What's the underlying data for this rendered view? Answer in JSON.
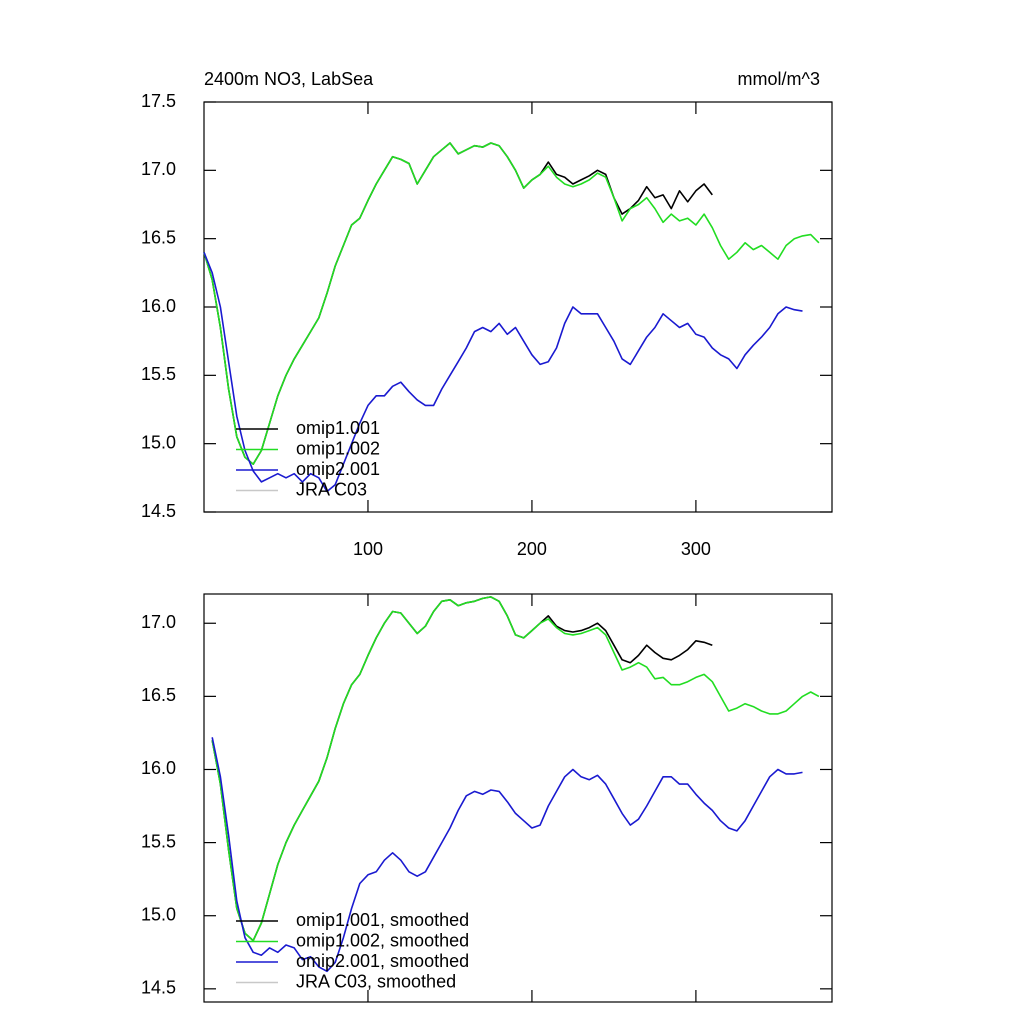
{
  "chart_data": [
    {
      "type": "line",
      "title": "2400m NO3, LabSea",
      "units": "mmol/m^3",
      "x": [
        0,
        5,
        10,
        15,
        20,
        25,
        30,
        35,
        40,
        45,
        50,
        55,
        60,
        65,
        70,
        75,
        80,
        85,
        90,
        95,
        100,
        105,
        110,
        115,
        120,
        125,
        130,
        135,
        140,
        145,
        150,
        155,
        160,
        165,
        170,
        175,
        180,
        185,
        190,
        195,
        200,
        205,
        210,
        215,
        220,
        225,
        230,
        235,
        240,
        245,
        250,
        255,
        260,
        265,
        270,
        275,
        280,
        285,
        290,
        295,
        300,
        305,
        310,
        315,
        320,
        325,
        330,
        335,
        340,
        345,
        350,
        355,
        360,
        365,
        370,
        375
      ],
      "series": [
        {
          "name": "omip1.001",
          "color": "#000000",
          "values": [
            16.4,
            16.2,
            15.85,
            15.4,
            15.05,
            14.9,
            14.85,
            14.95,
            15.15,
            15.35,
            15.5,
            15.62,
            15.72,
            15.82,
            15.92,
            16.1,
            16.3,
            16.45,
            16.6,
            16.65,
            16.78,
            16.9,
            17.0,
            17.1,
            17.08,
            17.05,
            16.9,
            17.0,
            17.1,
            17.15,
            17.2,
            17.12,
            17.15,
            17.18,
            17.17,
            17.2,
            17.18,
            17.1,
            17.0,
            16.87,
            16.93,
            16.97,
            17.06,
            16.97,
            16.95,
            16.9,
            16.93,
            16.96,
            17.0,
            16.97,
            16.8,
            16.68,
            16.72,
            16.78,
            16.88,
            16.8,
            16.82,
            16.72,
            16.85,
            16.77,
            16.85,
            16.9,
            16.82,
            null,
            null,
            null,
            null,
            null,
            null,
            null,
            null,
            null,
            null,
            null,
            null,
            null
          ]
        },
        {
          "name": "omip1.002",
          "color": "#22dd22",
          "values": [
            16.4,
            16.2,
            15.85,
            15.4,
            15.05,
            14.9,
            14.85,
            14.95,
            15.15,
            15.35,
            15.5,
            15.62,
            15.72,
            15.82,
            15.92,
            16.1,
            16.3,
            16.45,
            16.6,
            16.65,
            16.78,
            16.9,
            17.0,
            17.1,
            17.08,
            17.05,
            16.9,
            17.0,
            17.1,
            17.15,
            17.2,
            17.12,
            17.15,
            17.18,
            17.17,
            17.2,
            17.18,
            17.1,
            17.0,
            16.87,
            16.93,
            16.97,
            17.03,
            16.95,
            16.9,
            16.88,
            16.9,
            16.93,
            16.98,
            16.95,
            16.8,
            16.63,
            16.72,
            16.75,
            16.8,
            16.72,
            16.62,
            16.68,
            16.63,
            16.65,
            16.6,
            16.68,
            16.58,
            16.45,
            16.35,
            16.4,
            16.47,
            16.42,
            16.45,
            16.4,
            16.35,
            16.45,
            16.5,
            16.52,
            16.53,
            16.47
          ]
        },
        {
          "name": "omip2.001",
          "color": "#1a1ad0",
          "values": [
            16.4,
            16.25,
            16.0,
            15.6,
            15.2,
            14.95,
            14.8,
            14.72,
            14.75,
            14.78,
            14.75,
            14.78,
            14.72,
            14.78,
            14.75,
            14.65,
            14.7,
            14.85,
            15.0,
            15.15,
            15.28,
            15.35,
            15.35,
            15.42,
            15.45,
            15.38,
            15.32,
            15.28,
            15.28,
            15.4,
            15.5,
            15.6,
            15.7,
            15.82,
            15.85,
            15.82,
            15.88,
            15.8,
            15.85,
            15.75,
            15.65,
            15.58,
            15.6,
            15.7,
            15.88,
            16.0,
            15.95,
            15.95,
            15.95,
            15.85,
            15.75,
            15.62,
            15.58,
            15.68,
            15.78,
            15.85,
            15.95,
            15.9,
            15.85,
            15.88,
            15.8,
            15.78,
            15.7,
            15.65,
            15.62,
            15.55,
            15.65,
            15.72,
            15.78,
            15.85,
            15.95,
            16.0,
            15.98,
            15.97,
            null,
            null
          ]
        },
        {
          "name": "JRA C03",
          "color": "#c8c8c8",
          "values": [
            null,
            null,
            null,
            null,
            null,
            null,
            null,
            null,
            null,
            null,
            null,
            null,
            null,
            null,
            null,
            null,
            null,
            null,
            null,
            null,
            null,
            null,
            null,
            null,
            null,
            null,
            null,
            null,
            null,
            null,
            null,
            null,
            null,
            null,
            null,
            null,
            null,
            null,
            null,
            null,
            null,
            null,
            null,
            null,
            null,
            null,
            null,
            null,
            null,
            null,
            null,
            null,
            null,
            null,
            null,
            null,
            null,
            null,
            null,
            null,
            null,
            null,
            null,
            null,
            null,
            null,
            null,
            null,
            null,
            null,
            null,
            null,
            null,
            null,
            null,
            null
          ]
        }
      ],
      "xlim": [
        0,
        383
      ],
      "xticks": [
        100,
        200,
        300
      ],
      "ylim": [
        14.5,
        17.5
      ],
      "yticks": [
        14.5,
        {
          "value": 15,
          "label": "15.0"
        },
        15.5,
        {
          "value": 16,
          "label": "16.0"
        },
        16.5,
        {
          "value": 17,
          "label": "17.0"
        },
        17.5
      ]
    },
    {
      "type": "line",
      "x": [
        0,
        5,
        10,
        15,
        20,
        25,
        30,
        35,
        40,
        45,
        50,
        55,
        60,
        65,
        70,
        75,
        80,
        85,
        90,
        95,
        100,
        105,
        110,
        115,
        120,
        125,
        130,
        135,
        140,
        145,
        150,
        155,
        160,
        165,
        170,
        175,
        180,
        185,
        190,
        195,
        200,
        205,
        210,
        215,
        220,
        225,
        230,
        235,
        240,
        245,
        250,
        255,
        260,
        265,
        270,
        275,
        280,
        285,
        290,
        295,
        300,
        305,
        310,
        315,
        320,
        325,
        330,
        335,
        340,
        345,
        350,
        355,
        360,
        365,
        370,
        375
      ],
      "series": [
        {
          "name": "omip1.001, smoothed",
          "color": "#000000",
          "values": [
            null,
            16.2,
            15.9,
            15.45,
            15.05,
            14.88,
            14.83,
            14.95,
            15.15,
            15.35,
            15.5,
            15.62,
            15.72,
            15.82,
            15.92,
            16.08,
            16.28,
            16.45,
            16.58,
            16.65,
            16.78,
            16.9,
            17.0,
            17.08,
            17.07,
            17.0,
            16.93,
            16.98,
            17.08,
            17.15,
            17.16,
            17.12,
            17.14,
            17.15,
            17.17,
            17.18,
            17.15,
            17.05,
            16.92,
            16.9,
            16.95,
            17.0,
            17.05,
            16.98,
            16.95,
            16.94,
            16.95,
            16.97,
            17.0,
            16.95,
            16.85,
            16.75,
            16.73,
            16.78,
            16.85,
            16.8,
            16.76,
            16.75,
            16.78,
            16.82,
            16.88,
            16.87,
            16.85,
            null,
            null,
            null,
            null,
            null,
            null,
            null,
            null,
            null,
            null,
            null,
            null,
            null
          ]
        },
        {
          "name": "omip1.002, smoothed",
          "color": "#22dd22",
          "values": [
            null,
            16.2,
            15.9,
            15.45,
            15.05,
            14.88,
            14.83,
            14.95,
            15.15,
            15.35,
            15.5,
            15.62,
            15.72,
            15.82,
            15.92,
            16.08,
            16.28,
            16.45,
            16.58,
            16.65,
            16.78,
            16.9,
            17.0,
            17.08,
            17.07,
            17.0,
            16.93,
            16.98,
            17.08,
            17.15,
            17.16,
            17.12,
            17.14,
            17.15,
            17.17,
            17.18,
            17.15,
            17.05,
            16.92,
            16.9,
            16.95,
            17.0,
            17.03,
            16.97,
            16.93,
            16.92,
            16.93,
            16.95,
            16.97,
            16.92,
            16.8,
            16.68,
            16.7,
            16.73,
            16.7,
            16.62,
            16.63,
            16.58,
            16.58,
            16.6,
            16.63,
            16.65,
            16.6,
            16.5,
            16.4,
            16.42,
            16.45,
            16.43,
            16.4,
            16.38,
            16.38,
            16.4,
            16.45,
            16.5,
            16.53,
            16.5
          ]
        },
        {
          "name": "omip2.001, smoothed",
          "color": "#1a1ad0",
          "values": [
            null,
            16.22,
            15.95,
            15.55,
            15.1,
            14.85,
            14.75,
            14.73,
            14.78,
            14.75,
            14.8,
            14.78,
            14.7,
            14.72,
            14.65,
            14.62,
            14.68,
            14.85,
            15.05,
            15.22,
            15.28,
            15.3,
            15.38,
            15.43,
            15.38,
            15.3,
            15.27,
            15.3,
            15.4,
            15.5,
            15.6,
            15.72,
            15.82,
            15.85,
            15.83,
            15.86,
            15.85,
            15.78,
            15.7,
            15.65,
            15.6,
            15.62,
            15.75,
            15.85,
            15.95,
            16.0,
            15.95,
            15.93,
            15.96,
            15.9,
            15.8,
            15.7,
            15.62,
            15.66,
            15.75,
            15.85,
            15.95,
            15.95,
            15.9,
            15.9,
            15.83,
            15.77,
            15.72,
            15.65,
            15.6,
            15.58,
            15.65,
            15.75,
            15.85,
            15.95,
            16.0,
            15.97,
            15.97,
            15.98,
            null,
            null
          ]
        },
        {
          "name": "JRA C03, smoothed",
          "color": "#c8c8c8",
          "values": [
            null,
            null,
            null,
            null,
            null,
            null,
            null,
            null,
            null,
            null,
            null,
            null,
            null,
            null,
            null,
            null,
            null,
            null,
            null,
            null,
            null,
            null,
            null,
            null,
            null,
            null,
            null,
            null,
            null,
            null,
            null,
            null,
            null,
            null,
            null,
            null,
            null,
            null,
            null,
            null,
            null,
            null,
            null,
            null,
            null,
            null,
            null,
            null,
            null,
            null,
            null,
            null,
            null,
            null,
            null,
            null,
            null,
            null,
            null,
            null,
            null,
            null,
            null,
            null,
            null,
            null,
            null,
            null,
            null,
            null,
            null,
            null,
            null,
            null,
            null,
            null
          ]
        }
      ],
      "xlim": [
        0,
        383
      ],
      "ylim": [
        14.41,
        17.2
      ],
      "yticks": [
        14.5,
        {
          "value": 15,
          "label": "15.0"
        },
        15.5,
        {
          "value": 16,
          "label": "16.0"
        },
        16.5,
        {
          "value": 17,
          "label": "17.0"
        }
      ]
    }
  ]
}
